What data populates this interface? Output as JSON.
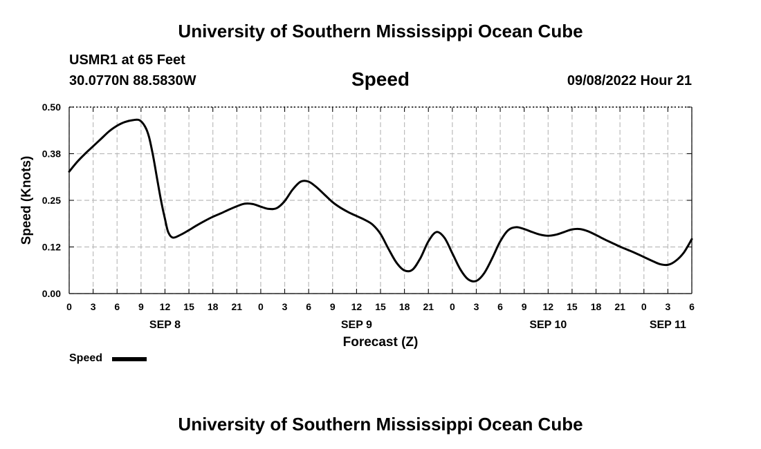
{
  "header": {
    "title": "University of Southern Mississippi Ocean Cube",
    "station": "USMR1 at 65 Feet",
    "coords": "30.0770N  88.5830W",
    "chart_title": "Speed",
    "datetime": "09/08/2022 Hour 21"
  },
  "footer": {
    "title": "University of Southern Mississippi Ocean Cube"
  },
  "legend": {
    "label": "Speed"
  },
  "colors": {
    "line": "#000000",
    "grid": "#bbbbbb",
    "background": "#ffffff"
  },
  "chart_data": {
    "type": "line",
    "title": "Speed",
    "xlabel": "Forecast (Z)",
    "ylabel": "Speed (Knots)",
    "ylim": [
      0,
      0.5
    ],
    "yticks": [
      "0.00",
      "0.12",
      "0.25",
      "0.38",
      "0.50"
    ],
    "xlim": [
      0,
      78
    ],
    "x_unit": "hours since 00Z Sep 8, 2022",
    "xtick_labels": [
      "0",
      "3",
      "6",
      "9",
      "12",
      "15",
      "18",
      "21",
      "0",
      "3",
      "6",
      "9",
      "12",
      "15",
      "18",
      "21",
      "0",
      "3",
      "6",
      "9",
      "12",
      "15",
      "18",
      "21",
      "0",
      "3",
      "6"
    ],
    "date_labels": [
      {
        "hour": 12,
        "label": "SEP 8"
      },
      {
        "hour": 36,
        "label": "SEP 9"
      },
      {
        "hour": 60,
        "label": "SEP 10"
      },
      {
        "hour": 75,
        "label": "SEP 11"
      }
    ],
    "grid": true,
    "series": [
      {
        "name": "Speed",
        "x": [
          0,
          1,
          2,
          3,
          4,
          5,
          6,
          7,
          8,
          8.8,
          9.5,
          10,
          10.5,
          11,
          11.5,
          12,
          12.4,
          13,
          14,
          15,
          16,
          17,
          18,
          19,
          20,
          21,
          22,
          23,
          24,
          25,
          26,
          27,
          28,
          29,
          30,
          31,
          32,
          33,
          34,
          35,
          36,
          37,
          38,
          39,
          40,
          41,
          42,
          43,
          44,
          45,
          46,
          47,
          48,
          49,
          50,
          51,
          52,
          53,
          54,
          55,
          56,
          57,
          58,
          59,
          60,
          61,
          62,
          63,
          64,
          65,
          66,
          67,
          68,
          69,
          70,
          71,
          72,
          73,
          74,
          75,
          76,
          77,
          78
        ],
        "values": [
          0.327,
          0.353,
          0.375,
          0.395,
          0.415,
          0.435,
          0.45,
          0.46,
          0.465,
          0.465,
          0.448,
          0.42,
          0.37,
          0.31,
          0.25,
          0.2,
          0.165,
          0.15,
          0.158,
          0.17,
          0.183,
          0.195,
          0.206,
          0.215,
          0.225,
          0.234,
          0.241,
          0.24,
          0.233,
          0.227,
          0.229,
          0.248,
          0.279,
          0.3,
          0.3,
          0.285,
          0.265,
          0.245,
          0.23,
          0.218,
          0.208,
          0.198,
          0.185,
          0.16,
          0.12,
          0.083,
          0.062,
          0.064,
          0.095,
          0.14,
          0.165,
          0.15,
          0.108,
          0.065,
          0.038,
          0.034,
          0.055,
          0.095,
          0.14,
          0.17,
          0.178,
          0.173,
          0.165,
          0.158,
          0.155,
          0.158,
          0.165,
          0.172,
          0.173,
          0.167,
          0.157,
          0.146,
          0.136,
          0.126,
          0.117,
          0.108,
          0.098,
          0.088,
          0.079,
          0.077,
          0.088,
          0.11,
          0.146
        ]
      }
    ]
  }
}
